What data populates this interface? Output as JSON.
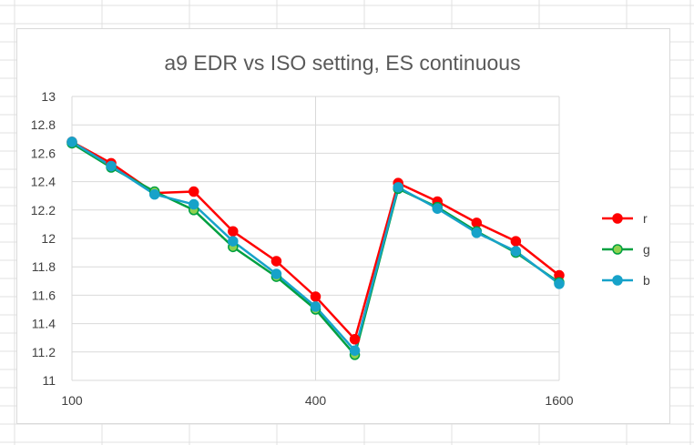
{
  "chart_data": {
    "type": "line",
    "title": "a9 EDR vs ISO setting, ES continuous",
    "xlabel": "",
    "ylabel": "",
    "x_scale": "log2",
    "x_ticks": [
      "100",
      "400",
      "1600"
    ],
    "x": [
      100,
      125,
      160,
      200,
      250,
      320,
      400,
      500,
      640,
      800,
      1000,
      1250,
      1600
    ],
    "ylim": [
      11,
      13
    ],
    "y_ticks": [
      "13",
      "12.8",
      "12.6",
      "12.4",
      "12.2",
      "12",
      "11.8",
      "11.6",
      "11.4",
      "11.2",
      "11"
    ],
    "y_tick_values": [
      13,
      12.8,
      12.6,
      12.4,
      12.2,
      12,
      11.8,
      11.6,
      11.4,
      11.2,
      11
    ],
    "grid": true,
    "legend_position": "right",
    "series": [
      {
        "name": "r",
        "color": "#ff0000",
        "values": [
          12.68,
          12.53,
          12.32,
          12.33,
          12.05,
          11.84,
          11.59,
          11.29,
          12.39,
          12.26,
          12.11,
          11.98,
          11.74
        ]
      },
      {
        "name": "g",
        "color": "#00a040",
        "values": [
          12.67,
          12.5,
          12.33,
          12.2,
          11.94,
          11.73,
          11.5,
          11.18,
          12.35,
          12.22,
          12.05,
          11.9,
          11.69
        ]
      },
      {
        "name": "b",
        "color": "#17a2c9",
        "values": [
          12.68,
          12.51,
          12.31,
          12.24,
          11.98,
          11.75,
          11.52,
          11.21,
          12.36,
          12.21,
          12.04,
          11.91,
          11.68
        ]
      }
    ]
  }
}
